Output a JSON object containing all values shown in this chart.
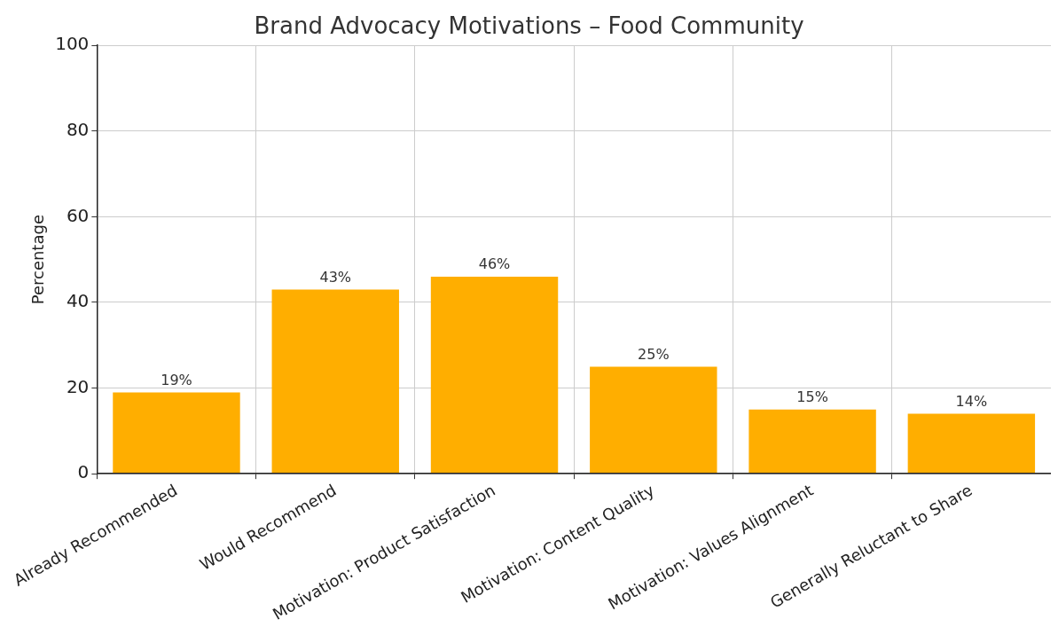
{
  "chart_data": {
    "type": "bar",
    "title": "Brand Advocacy Motivations – Food Community",
    "ylabel": "Percentage",
    "categories": [
      "Already Recommended",
      "Would Recommend",
      "Motivation: Product Satisfaction",
      "Motivation: Content Quality",
      "Motivation: Values Alignment",
      "Generally Reluctant to Share"
    ],
    "values": [
      19,
      43,
      46,
      25,
      15,
      14
    ],
    "color": "#ffae00",
    "value_labels": [
      "19%",
      "43%",
      "46%",
      "25%",
      "15%",
      "14%"
    ],
    "ylim": [
      0,
      100
    ],
    "yticks": [
      0,
      20,
      40,
      60,
      80,
      100
    ],
    "grid": true,
    "legend": false
  }
}
